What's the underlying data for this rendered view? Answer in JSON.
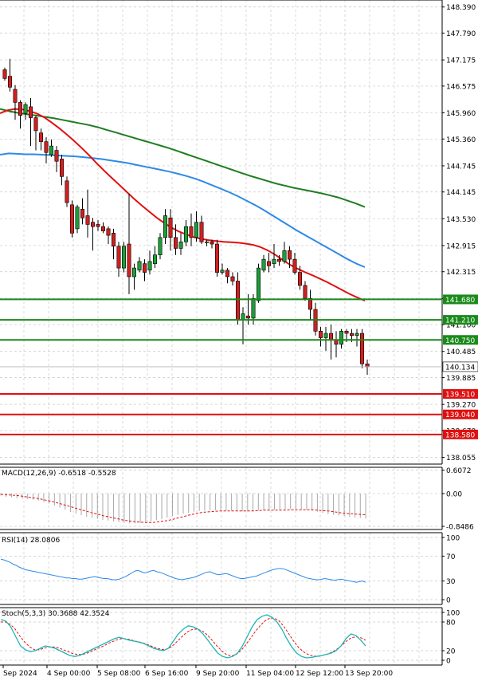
{
  "chart_data": [
    {
      "type": "candlestick",
      "panel": "price",
      "y_ticks": [
        "148.390",
        "147.790",
        "147.175",
        "146.575",
        "145.960",
        "145.360",
        "144.745",
        "144.145",
        "143.530",
        "142.915",
        "142.315",
        "141.700",
        "141.100",
        "140.485",
        "139.885",
        "139.270",
        "138.670",
        "138.055"
      ],
      "ylim": [
        137.9,
        148.55
      ],
      "current_price": "140.134",
      "levels": [
        {
          "label": "141.680",
          "value": 141.68,
          "color": "#1a8a1a"
        },
        {
          "label": "141.210",
          "value": 141.21,
          "color": "#1a8a1a"
        },
        {
          "label": "140.750",
          "value": 140.75,
          "color": "#1a8a1a"
        },
        {
          "label": "139.510",
          "value": 139.51,
          "color": "#e01010"
        },
        {
          "label": "139.040",
          "value": 139.04,
          "color": "#e01010"
        },
        {
          "label": "138.580",
          "value": 138.58,
          "color": "#e01010"
        }
      ],
      "candles": [
        [
          146.95,
          146.75,
          147.0,
          146.7
        ],
        [
          146.8,
          146.55,
          147.2,
          146.45
        ],
        [
          146.5,
          146.2,
          146.6,
          145.8
        ],
        [
          146.2,
          145.9,
          146.25,
          145.6
        ],
        [
          145.95,
          146.15,
          146.2,
          145.8
        ],
        [
          146.1,
          145.85,
          146.3,
          145.2
        ],
        [
          145.85,
          145.55,
          145.9,
          145.1
        ],
        [
          145.5,
          145.3,
          145.6,
          145.1
        ],
        [
          145.3,
          145.05,
          145.4,
          144.8
        ],
        [
          145.0,
          145.2,
          145.35,
          144.95
        ],
        [
          145.1,
          144.85,
          145.2,
          144.6
        ],
        [
          144.9,
          144.5,
          145.0,
          144.3
        ],
        [
          144.4,
          143.9,
          144.5,
          143.8
        ],
        [
          143.85,
          143.2,
          143.95,
          143.1
        ],
        [
          143.3,
          143.8,
          143.85,
          143.2
        ],
        [
          143.75,
          143.55,
          144.0,
          143.4
        ],
        [
          143.6,
          143.4,
          144.2,
          143.1
        ],
        [
          143.45,
          143.35,
          143.55,
          142.8
        ],
        [
          143.4,
          143.35,
          143.5,
          143.25
        ],
        [
          143.35,
          143.25,
          143.45,
          143.2
        ],
        [
          143.3,
          143.15,
          143.35,
          142.95
        ],
        [
          143.2,
          142.9,
          143.3,
          142.6
        ],
        [
          142.9,
          142.4,
          143.0,
          142.2
        ],
        [
          142.4,
          142.9,
          143.0,
          142.3
        ],
        [
          142.95,
          142.2,
          144.1,
          141.8
        ],
        [
          142.2,
          142.4,
          142.5,
          141.9
        ],
        [
          142.35,
          142.55,
          142.65,
          142.3
        ],
        [
          142.5,
          142.3,
          142.6,
          142.1
        ],
        [
          142.35,
          142.55,
          142.8,
          142.25
        ],
        [
          142.5,
          142.7,
          142.9,
          142.4
        ],
        [
          142.7,
          143.1,
          143.2,
          142.6
        ],
        [
          143.1,
          143.6,
          143.75,
          142.95
        ],
        [
          143.55,
          143.1,
          143.75,
          142.8
        ],
        [
          143.1,
          142.85,
          143.4,
          142.7
        ],
        [
          142.85,
          143.0,
          143.2,
          142.7
        ],
        [
          143.0,
          143.35,
          143.5,
          142.9
        ],
        [
          143.35,
          143.1,
          143.65,
          142.9
        ],
        [
          143.1,
          143.45,
          143.7,
          143.0
        ],
        [
          143.45,
          143.0,
          143.6,
          142.95
        ],
        [
          143.0,
          143.0,
          143.05,
          142.9
        ],
        [
          143.0,
          142.95,
          143.05,
          142.85
        ],
        [
          142.95,
          142.3,
          143.05,
          142.2
        ],
        [
          142.3,
          142.35,
          142.5,
          142.25
        ],
        [
          142.35,
          142.2,
          142.4,
          142.05
        ],
        [
          142.2,
          142.1,
          142.3,
          142.0
        ],
        [
          142.1,
          141.2,
          142.3,
          141.1
        ],
        [
          141.2,
          141.35,
          141.5,
          140.65
        ],
        [
          141.3,
          141.25,
          141.8,
          141.1
        ],
        [
          141.25,
          141.7,
          141.8,
          141.1
        ],
        [
          141.65,
          142.4,
          142.5,
          141.6
        ],
        [
          142.35,
          142.6,
          142.7,
          142.3
        ],
        [
          142.55,
          142.45,
          142.75,
          142.3
        ],
        [
          142.5,
          142.6,
          142.95,
          142.4
        ],
        [
          142.6,
          142.55,
          142.7,
          142.45
        ],
        [
          142.55,
          142.8,
          143.0,
          142.5
        ],
        [
          142.8,
          142.6,
          142.9,
          142.4
        ],
        [
          142.6,
          142.3,
          142.75,
          142.25
        ],
        [
          142.3,
          142.0,
          142.45,
          141.9
        ],
        [
          142.0,
          141.7,
          142.1,
          141.65
        ],
        [
          141.7,
          141.45,
          141.9,
          141.2
        ],
        [
          141.45,
          140.95,
          141.6,
          140.85
        ],
        [
          140.95,
          140.8,
          141.05,
          140.6
        ],
        [
          140.8,
          140.9,
          141.05,
          140.5
        ],
        [
          140.9,
          140.75,
          141.1,
          140.3
        ],
        [
          140.75,
          140.65,
          140.95,
          140.35
        ],
        [
          140.65,
          140.95,
          141.0,
          140.55
        ],
        [
          140.95,
          140.9,
          141.0,
          140.7
        ],
        [
          140.9,
          140.85,
          141.0,
          140.7
        ],
        [
          140.85,
          140.9,
          141.0,
          140.6
        ],
        [
          140.9,
          140.2,
          141.0,
          140.1
        ],
        [
          140.2,
          140.13,
          140.3,
          139.95
        ]
      ],
      "ma_red": [
        145.95,
        146.02,
        146.05,
        146.04,
        146.0,
        145.94,
        145.85,
        145.73,
        145.6,
        145.46,
        145.31,
        145.15,
        144.98,
        144.8,
        144.63,
        144.47,
        144.31,
        144.15,
        143.99,
        143.84,
        143.7,
        143.56,
        143.44,
        143.33,
        143.24,
        143.17,
        143.11,
        143.07,
        143.04,
        143.02,
        143.0,
        142.99,
        142.98,
        142.96,
        142.93,
        142.88,
        142.8,
        142.7,
        142.58,
        142.47,
        142.38,
        142.3,
        142.23,
        142.15,
        142.07,
        141.98,
        141.89,
        141.8,
        141.72,
        141.65
      ],
      "ma_blue": [
        145.0,
        145.03,
        145.02,
        145.01,
        145.01,
        145.0,
        144.99,
        144.98,
        144.97,
        144.96,
        144.94,
        144.92,
        144.9,
        144.87,
        144.84,
        144.81,
        144.77,
        144.73,
        144.69,
        144.65,
        144.61,
        144.56,
        144.51,
        144.45,
        144.38,
        144.3,
        144.22,
        144.14,
        144.05,
        143.95,
        143.85,
        143.74,
        143.62,
        143.5,
        143.38,
        143.26,
        143.15,
        143.04,
        142.93,
        142.82,
        142.71,
        142.6,
        142.5,
        142.42
      ],
      "ma_green": [
        146.05,
        146.0,
        145.96,
        145.93,
        145.9,
        145.87,
        145.84,
        145.8,
        145.76,
        145.72,
        145.68,
        145.63,
        145.57,
        145.51,
        145.45,
        145.39,
        145.33,
        145.27,
        145.21,
        145.15,
        145.08,
        145.01,
        144.94,
        144.87,
        144.8,
        144.73,
        144.66,
        144.59,
        144.52,
        144.46,
        144.4,
        144.34,
        144.29,
        144.24,
        144.2,
        144.16,
        144.12,
        144.07,
        144.02,
        143.95,
        143.88,
        143.8
      ]
    },
    {
      "type": "bar",
      "panel": "macd",
      "label": "MACD(12,26,9) -0.6518 -0.5528",
      "y_ticks": [
        "0.6072",
        "0.00",
        "-0.8486"
      ],
      "ylim": [
        -0.93,
        0.68
      ],
      "histogram": [
        -0.05,
        -0.08,
        -0.1,
        -0.12,
        -0.13,
        -0.14,
        -0.16,
        -0.18,
        -0.22,
        -0.26,
        -0.31,
        -0.36,
        -0.42,
        -0.48,
        -0.52,
        -0.56,
        -0.6,
        -0.63,
        -0.66,
        -0.68,
        -0.7,
        -0.72,
        -0.74,
        -0.76,
        -0.77,
        -0.77,
        -0.76,
        -0.74,
        -0.72,
        -0.69,
        -0.66,
        -0.62,
        -0.58,
        -0.55,
        -0.52,
        -0.5,
        -0.47,
        -0.45,
        -0.44,
        -0.43,
        -0.43,
        -0.43,
        -0.44,
        -0.44,
        -0.45,
        -0.46,
        -0.46,
        -0.45,
        -0.43,
        -0.42,
        -0.42,
        -0.42,
        -0.42,
        -0.41,
        -0.4,
        -0.4,
        -0.41,
        -0.42,
        -0.44,
        -0.47,
        -0.5,
        -0.53,
        -0.55,
        -0.57,
        -0.58,
        -0.6,
        -0.62,
        -0.63,
        -0.65
      ],
      "signal": [
        -0.02,
        -0.03,
        -0.04,
        -0.05,
        -0.07,
        -0.09,
        -0.11,
        -0.13,
        -0.16,
        -0.19,
        -0.22,
        -0.26,
        -0.3,
        -0.34,
        -0.38,
        -0.42,
        -0.46,
        -0.5,
        -0.53,
        -0.57,
        -0.6,
        -0.63,
        -0.66,
        -0.69,
        -0.71,
        -0.73,
        -0.74,
        -0.75,
        -0.75,
        -0.74,
        -0.72,
        -0.7,
        -0.67,
        -0.63,
        -0.6,
        -0.56,
        -0.53,
        -0.5,
        -0.48,
        -0.47,
        -0.46,
        -0.45,
        -0.45,
        -0.45,
        -0.45,
        -0.45,
        -0.45,
        -0.45,
        -0.44,
        -0.43,
        -0.43,
        -0.43,
        -0.43,
        -0.43,
        -0.42,
        -0.42,
        -0.42,
        -0.42,
        -0.42,
        -0.43,
        -0.44,
        -0.45,
        -0.47,
        -0.49,
        -0.51,
        -0.52,
        -0.53,
        -0.54,
        -0.55
      ]
    },
    {
      "type": "line",
      "panel": "rsi",
      "label": "RSI(14) 28.0806",
      "y_ticks": [
        "100",
        "70",
        "30",
        "0"
      ],
      "ylim": [
        0,
        100
      ],
      "values": [
        65,
        64,
        62,
        60,
        57,
        55,
        52,
        50,
        48,
        47,
        46,
        45,
        44,
        43,
        42,
        41,
        40,
        39,
        38,
        37,
        36,
        35,
        35,
        34,
        34,
        33,
        33,
        34,
        35,
        36,
        37,
        36,
        35,
        34,
        34,
        33,
        32,
        32,
        33,
        35,
        37,
        40,
        43,
        46,
        47,
        45,
        43,
        44,
        46,
        47,
        45,
        44,
        42,
        40,
        38,
        36,
        34,
        33,
        32,
        33,
        34,
        35,
        36,
        38,
        40,
        42,
        44,
        45,
        43,
        41,
        40,
        41,
        42,
        41,
        39,
        37,
        35,
        34,
        34,
        35,
        36,
        37,
        38,
        40,
        42,
        44,
        46,
        48,
        49,
        50,
        50,
        49,
        47,
        45,
        43,
        41,
        39,
        37,
        35,
        34,
        33,
        32,
        32,
        33,
        34,
        33,
        32,
        31,
        32,
        33,
        32,
        31,
        30,
        29,
        28,
        29,
        30,
        28
      ]
    },
    {
      "type": "line",
      "panel": "stoch",
      "label": "Stoch(5,3,3) 30.3688 42.3524",
      "y_ticks": [
        "100",
        "80",
        "20",
        "0"
      ],
      "ylim": [
        0,
        100
      ],
      "main": [
        85,
        82,
        70,
        50,
        30,
        22,
        18,
        20,
        25,
        30,
        28,
        25,
        20,
        15,
        10,
        8,
        10,
        15,
        20,
        25,
        30,
        35,
        40,
        45,
        48,
        45,
        42,
        40,
        38,
        35,
        30,
        25,
        22,
        20,
        25,
        40,
        55,
        65,
        72,
        70,
        65,
        55,
        42,
        28,
        15,
        8,
        5,
        8,
        15,
        30,
        50,
        70,
        85,
        92,
        95,
        90,
        80,
        65,
        45,
        28,
        15,
        8,
        5,
        6,
        8,
        10,
        12,
        15,
        20,
        30,
        45,
        55,
        52,
        42,
        30
      ],
      "signal": [
        80,
        80,
        75,
        65,
        50,
        38,
        28,
        22,
        22,
        25,
        28,
        28,
        26,
        22,
        18,
        14,
        12,
        12,
        15,
        19,
        24,
        28,
        33,
        38,
        42,
        45,
        45,
        43,
        40,
        38,
        35,
        31,
        27,
        24,
        22,
        25,
        32,
        42,
        52,
        60,
        65,
        65,
        61,
        53,
        42,
        30,
        20,
        12,
        9,
        12,
        20,
        32,
        46,
        60,
        72,
        82,
        88,
        88,
        82,
        70,
        55,
        40,
        27,
        18,
        12,
        9,
        8,
        10,
        13,
        17,
        23,
        31,
        40,
        47,
        49,
        47,
        42
      ]
    }
  ],
  "x_axis_labels": [
    "Sep 2024",
    "4 Sep 00:00",
    "5 Sep 08:00",
    "6 Sep 16:00",
    "9 Sep 20:00",
    "11 Sep 04:00",
    "12 Sep 12:00",
    "13 Sep 20:00"
  ]
}
